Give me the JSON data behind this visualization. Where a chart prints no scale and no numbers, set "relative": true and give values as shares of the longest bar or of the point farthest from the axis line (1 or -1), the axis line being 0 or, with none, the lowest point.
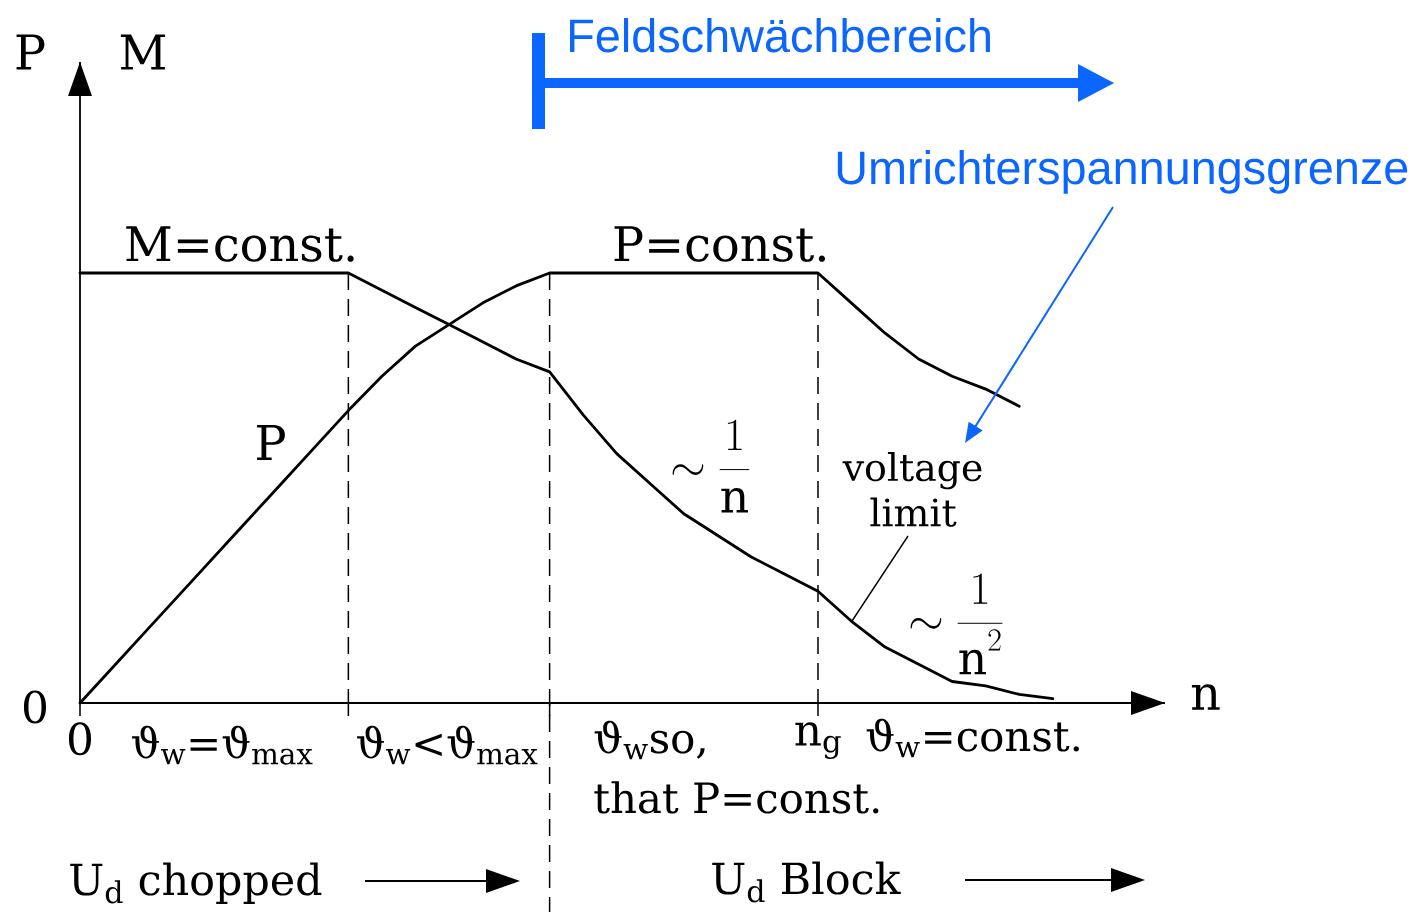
{
  "chart_data": {
    "type": "line",
    "relative": true,
    "xlabel": "n",
    "grid": "x",
    "categories": [
      "0",
      null,
      null,
      null,
      null,
      null,
      null,
      null,
      null,
      null,
      null,
      null,
      null,
      null,
      null,
      null,
      null,
      null,
      null,
      null,
      null,
      null,
      "n$_{g}$",
      null,
      null,
      null,
      null,
      null,
      null,
      null
    ],
    "series": [
      {
        "color": "#000000",
        "values": [
          1,
          1,
          1,
          1,
          1,
          1,
          1,
          1,
          1,
          0.96,
          0.92,
          0.88,
          0.84,
          0.8,
          0.77,
          0.67,
          0.58,
          0.51,
          0.44,
          0.39,
          0.34,
          0.3,
          0.26,
          0.19,
          0.13,
          0.09,
          0.05,
          0.04,
          0.02,
          0.01
        ]
      },
      {
        "name": "P",
        "color": "#000000",
        "values": [
          0,
          0.085,
          0.17,
          0.255,
          0.34,
          0.425,
          0.51,
          0.595,
          0.68,
          0.76,
          0.83,
          0.88,
          0.93,
          0.97,
          1,
          1,
          1,
          1,
          1,
          1,
          1,
          1,
          1,
          0.93,
          0.86,
          0.8,
          0.76,
          0.73,
          0.69,
          null
        ]
      }
    ],
    "marker": "none",
    "line_style": "solid",
    "annotations": [
      "P",
      "M",
      "0",
      {
        "text": "M=const.",
        "y": 1
      },
      {
        "text": "P=const.",
        "y": 1
      },
      {
        "text": "\\sim\\frac{1}{\\mathrm{n}}",
        "y": 0.41
      },
      "voltage limit",
      {
        "text": "\\sim\\frac{1}{\\mathrm{n}^{2}}",
        "y": 0.05
      },
      "ϑ$_{w}$=ϑ$_{max}$",
      "ϑ$_{w}$<ϑ$_{max}$",
      "ϑ$_{w}$so,",
      "that P=const.",
      "ϑ$_{w}$=const.",
      "U$_{d}$ chopped",
      "U$_{d}$ Block",
      "Feldschwächbereich",
      "Umrichterspannungsgrenze"
    ]
  }
}
